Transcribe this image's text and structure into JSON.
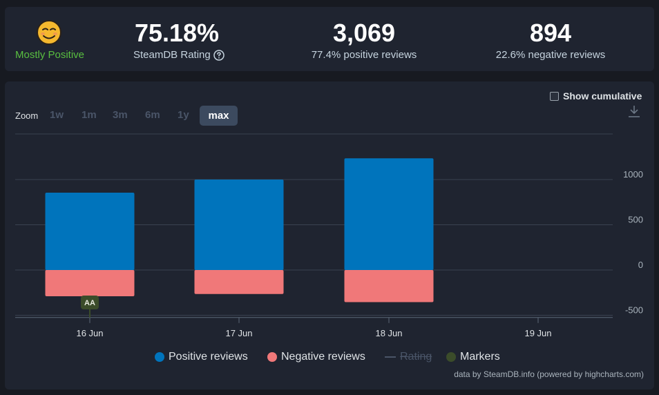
{
  "stats": {
    "rating_label": "Mostly Positive",
    "rating_label_color": "#66c0f4",
    "score": "75.18%",
    "score_label": "SteamDB Rating",
    "positive_count": "3,069",
    "positive_label": "77.4% positive reviews",
    "negative_count": "894",
    "negative_label": "22.6% negative reviews",
    "help_icon": "question-circle-icon",
    "face_icon": "smiling-face-icon"
  },
  "controls": {
    "zoom_label": "Zoom",
    "zoom_options": [
      "1w",
      "1m",
      "3m",
      "6m",
      "1y",
      "max"
    ],
    "zoom_selected": "max",
    "cumulative_label": "Show cumulative",
    "download_icon": "download-icon"
  },
  "chart_data": {
    "type": "bar",
    "stacked": true,
    "categories": [
      "16 Jun",
      "17 Jun",
      "18 Jun",
      "19 Jun"
    ],
    "series": [
      {
        "name": "Positive reviews",
        "color": "#0074bc",
        "values": [
          855,
          1000,
          1235,
          null
        ]
      },
      {
        "name": "Negative reviews",
        "color": "#f07879",
        "values": [
          -290,
          -265,
          -355,
          null
        ]
      }
    ],
    "y_ticks": [
      1000,
      500,
      0,
      -500
    ],
    "ylim": [
      -525,
      1500
    ],
    "grid": true,
    "markers": [
      {
        "category": "16 Jun",
        "label": "AA",
        "color": "#3b4c2a"
      }
    ]
  },
  "legend": {
    "positive": "Positive reviews",
    "negative": "Negative reviews",
    "rating": "Rating",
    "markers": "Markers",
    "positive_color": "#0074bc",
    "negative_color": "#f07879",
    "markers_color": "#3b4c2a"
  },
  "credit": "data by SteamDB.info (powered by highcharts.com)"
}
